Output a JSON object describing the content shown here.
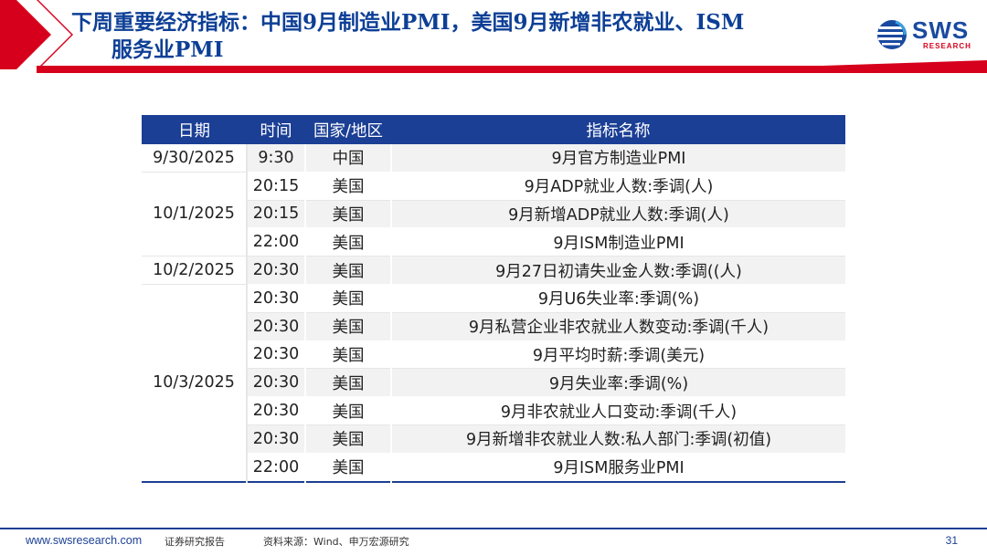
{
  "header": {
    "title_line1": "下周重要经济指标：中国9月制造业PMI，美国9月新增非农就业、ISM",
    "title_line2": "服务业PMI",
    "accent_color": "#d6001c",
    "title_color": "#0d3f96"
  },
  "logo": {
    "text": "SWS",
    "subtitle": "RESEARCH"
  },
  "table": {
    "columns": [
      "日期",
      "时间",
      "国家/地区",
      "指标名称"
    ],
    "date_groups": [
      {
        "date": "9/30/2025",
        "rows": [
          {
            "time": "9:30",
            "country": "中国",
            "indicator": "9月官方制造业PMI"
          }
        ]
      },
      {
        "date": "10/1/2025",
        "rows": [
          {
            "time": "20:15",
            "country": "美国",
            "indicator": "9月ADP就业人数:季调(人)"
          },
          {
            "time": "20:15",
            "country": "美国",
            "indicator": "9月新增ADP就业人数:季调(人)"
          },
          {
            "time": "22:00",
            "country": "美国",
            "indicator": "9月ISM制造业PMI"
          }
        ]
      },
      {
        "date": "10/2/2025",
        "rows": [
          {
            "time": "20:30",
            "country": "美国",
            "indicator": "9月27日初请失业金人数:季调((人)"
          }
        ]
      },
      {
        "date": "10/3/2025",
        "rows": [
          {
            "time": "20:30",
            "country": "美国",
            "indicator": "9月U6失业率:季调(%)"
          },
          {
            "time": "20:30",
            "country": "美国",
            "indicator": "9月私营企业非农就业人数变动:季调(千人)"
          },
          {
            "time": "20:30",
            "country": "美国",
            "indicator": "9月平均时薪:季调(美元)"
          },
          {
            "time": "20:30",
            "country": "美国",
            "indicator": "9月失业率:季调(%)"
          },
          {
            "time": "20:30",
            "country": "美国",
            "indicator": "9月非农就业人口变动:季调(千人)"
          },
          {
            "time": "20:30",
            "country": "美国",
            "indicator": "9月新增非农就业人数:私人部门:季调(初值)"
          },
          {
            "time": "22:00",
            "country": "美国",
            "indicator": "9月ISM服务业PMI"
          }
        ]
      }
    ]
  },
  "footer": {
    "website": "www.swsresearch.com",
    "label": "证券研究报告",
    "source": "资料来源：Wind、申万宏源研究",
    "page_number": "31"
  }
}
